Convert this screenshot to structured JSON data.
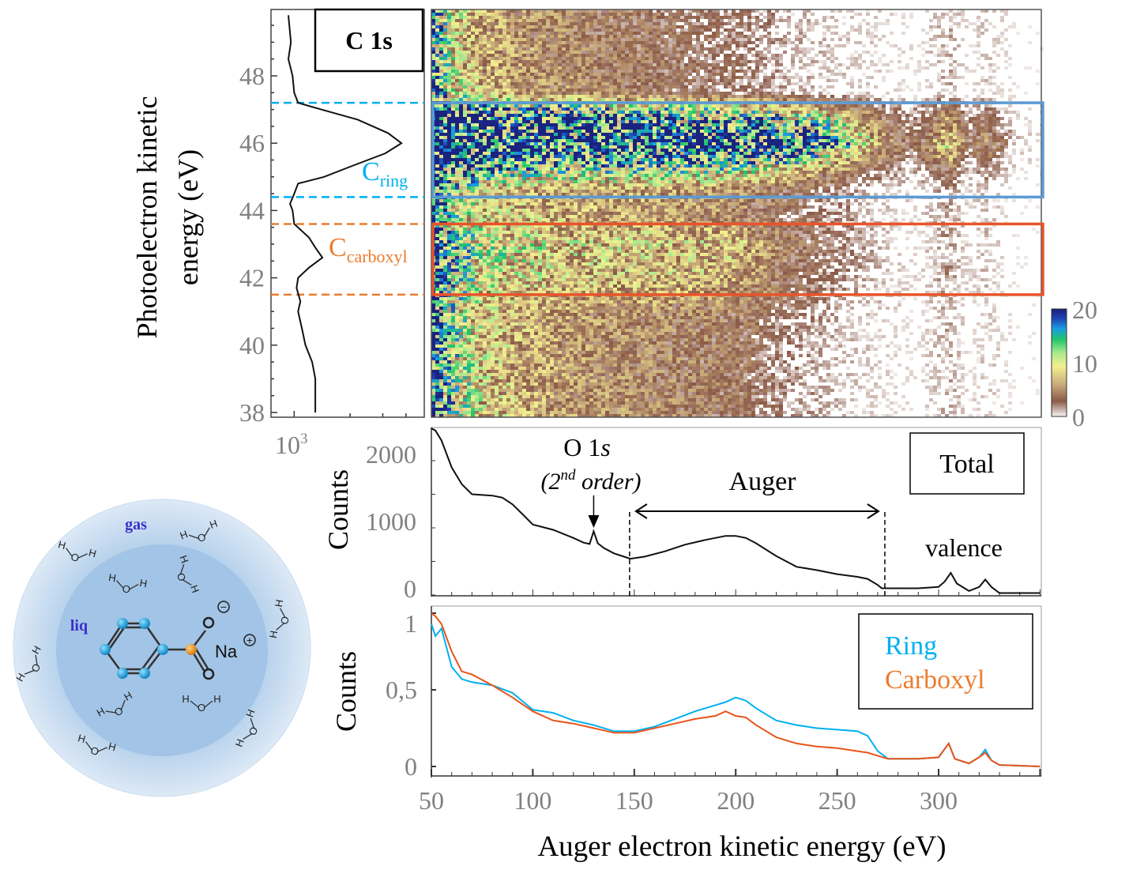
{
  "colors": {
    "ring": "#00b0f0",
    "carboxyl": "#e8641e",
    "carboxyl_label": "#ea7d2e",
    "ring_box": "#5b9bd5",
    "carboxyl_box": "#e8542a",
    "tick_gray": "#808080",
    "illustration_label": "#3a2fc8"
  },
  "chart_data": [
    {
      "type": "line",
      "panel": "side-profile",
      "ylabel": "Photoelectron kinetic energy (eV)",
      "ylim": [
        37.86,
        49.97
      ],
      "yticks": [
        "48",
        "46",
        "44",
        "42",
        "40",
        "38"
      ],
      "x_scale": "log",
      "xlim": [
        750,
        5000
      ],
      "xtick_label": {
        "base": "10",
        "exp": "3"
      },
      "title_box": "C 1s",
      "x": [
        930,
        960,
        930,
        980,
        1000,
        1050,
        1400,
        2200,
        3200,
        3780,
        3100,
        2000,
        1450,
        1050,
        1000,
        950,
        980,
        1000,
        1200,
        1300,
        1420,
        1200,
        1050,
        1030,
        1080,
        1050,
        1100,
        1150,
        1250,
        1300,
        1300,
        1300
      ],
      "y": [
        49.8,
        49,
        48.5,
        48,
        47.5,
        47.2,
        47,
        46.7,
        46.3,
        46,
        45.7,
        45.3,
        45,
        44.8,
        44.5,
        44.2,
        44,
        43.6,
        43.2,
        42.9,
        42.6,
        42.3,
        42,
        41.7,
        41.3,
        41,
        40.5,
        40,
        39.5,
        39,
        38.5,
        38
      ],
      "regions": [
        {
          "label_main": "C",
          "label_sub": "ring",
          "range": [
            44.4,
            47.2
          ],
          "color": "#00b0f0"
        },
        {
          "label_main": "C",
          "label_sub": "carboxyl",
          "range": [
            41.5,
            43.6
          ],
          "color": "#ea7d2e"
        }
      ]
    },
    {
      "type": "heatmap",
      "panel": "2d-map",
      "xlim": [
        50,
        350
      ],
      "ylim": [
        37.86,
        49.97
      ],
      "colorbar": {
        "min": 0,
        "max": 20,
        "ticks": [
          "20",
          "10",
          "0"
        ],
        "colormap": [
          "#ffffff",
          "#8b5a48",
          "#c7a97a",
          "#f3f08e",
          "#a9e98f",
          "#22c46a",
          "#1a9be0",
          "#1f3fae",
          "#1a237e"
        ]
      },
      "x_centers": [
        52,
        60,
        75,
        100,
        125,
        150,
        175,
        200,
        225,
        250,
        275,
        290,
        305,
        315,
        323,
        340
      ],
      "y_centers": [
        49.5,
        48.5,
        47.5,
        46.8,
        46,
        45.2,
        44.6,
        43.8,
        43,
        42,
        41,
        40,
        39,
        38
      ],
      "z": [
        [
          14,
          9,
          6,
          5,
          4,
          3.5,
          3,
          2.5,
          1.5,
          1,
          0.7,
          0.5,
          1.5,
          0.5,
          1,
          0.3
        ],
        [
          14,
          9,
          6,
          5,
          4,
          3.5,
          3,
          2.5,
          1.5,
          1,
          0.7,
          0.5,
          1.5,
          0.5,
          1,
          0.3
        ],
        [
          15,
          10,
          7,
          5,
          4.5,
          3.5,
          3,
          2.5,
          1.5,
          1,
          0.7,
          0.5,
          1.5,
          0.5,
          1,
          0.3
        ],
        [
          20,
          20,
          20,
          18,
          16,
          15,
          14,
          13,
          12,
          8,
          3,
          2,
          5,
          2,
          3,
          0.5
        ],
        [
          20,
          20,
          20,
          20,
          20,
          20,
          20,
          20,
          20,
          14,
          5,
          3,
          9,
          3,
          5,
          1
        ],
        [
          20,
          17,
          14,
          12,
          12,
          12,
          11,
          10,
          8,
          5,
          2,
          1.5,
          4,
          1.5,
          2,
          0.5
        ],
        [
          16,
          11,
          8,
          6,
          6,
          6,
          5.5,
          5,
          3.5,
          2,
          1,
          0.7,
          2,
          0.7,
          1.2,
          0.3
        ],
        [
          16,
          11,
          8,
          7,
          6,
          5.5,
          5,
          4.5,
          3,
          2,
          1,
          0.6,
          1.8,
          0.6,
          1.2,
          0.3
        ],
        [
          19,
          13,
          10,
          9,
          8,
          8,
          8,
          7,
          4,
          2.5,
          1,
          0.6,
          1.8,
          0.6,
          1.2,
          0.3
        ],
        [
          18,
          12,
          9,
          8,
          7,
          7,
          7,
          6,
          3.5,
          2,
          1,
          0.6,
          1.8,
          0.6,
          1.2,
          0.3
        ],
        [
          17,
          11,
          8,
          6,
          5,
          5,
          4.5,
          4,
          2.5,
          1.5,
          0.8,
          0.5,
          1.5,
          0.5,
          1,
          0.3
        ],
        [
          18,
          12,
          8,
          6,
          5,
          4.5,
          4,
          3.5,
          2,
          1.3,
          0.7,
          0.5,
          1.5,
          0.5,
          1,
          0.3
        ],
        [
          18,
          12,
          8,
          6,
          5,
          4.5,
          4,
          3.5,
          2,
          1.2,
          0.7,
          0.5,
          1.5,
          0.5,
          1,
          0.3
        ],
        [
          18,
          12,
          8,
          6,
          5,
          4.5,
          4,
          3.5,
          2,
          1.2,
          0.7,
          0.5,
          1.5,
          0.5,
          1,
          0.3
        ]
      ],
      "boxes": [
        {
          "name": "ring",
          "range": [
            44.4,
            47.2
          ]
        },
        {
          "name": "carboxyl",
          "range": [
            41.5,
            43.6
          ]
        }
      ]
    },
    {
      "type": "line",
      "panel": "total",
      "ylabel": "Counts",
      "xlim": [
        50,
        350
      ],
      "ylim": [
        0,
        2480
      ],
      "yticks": [
        "2000",
        "1000",
        "0"
      ],
      "legend": "Total",
      "x": [
        50,
        52,
        55,
        60,
        65,
        70,
        80,
        85,
        90,
        95,
        100,
        110,
        120,
        125,
        128,
        130,
        132,
        135,
        140,
        145,
        148,
        155,
        165,
        175,
        185,
        195,
        200,
        205,
        210,
        220,
        230,
        240,
        250,
        260,
        265,
        270,
        272,
        280,
        290,
        300,
        303,
        306,
        309,
        315,
        320,
        323,
        326,
        330,
        350
      ],
      "y": [
        2480,
        2450,
        2300,
        1900,
        1650,
        1500,
        1480,
        1450,
        1350,
        1200,
        1050,
        970,
        850,
        780,
        760,
        950,
        770,
        700,
        620,
        570,
        540,
        570,
        650,
        750,
        820,
        880,
        880,
        850,
        770,
        580,
        420,
        370,
        310,
        270,
        240,
        150,
        100,
        100,
        100,
        120,
        200,
        330,
        170,
        60,
        120,
        230,
        120,
        30,
        30
      ],
      "annotations": {
        "o1s": {
          "main": "O 1",
          "italic": "s",
          "order_open": "(2",
          "order_sup": "nd",
          "order_close": " order)",
          "x": 130
        },
        "auger": {
          "label": "Auger",
          "range": [
            147.7,
            273.5
          ]
        },
        "valence": "valence"
      }
    },
    {
      "type": "line",
      "panel": "ring-carboxyl",
      "ylabel": "Counts",
      "xlabel": "Auger electron kinetic energy (eV)",
      "xlim": [
        50,
        350
      ],
      "ylim": [
        0,
        1.07
      ],
      "yticks": [
        "1",
        "0,5",
        "0"
      ],
      "xticks": [
        "50",
        "100",
        "150",
        "200",
        "250",
        "300"
      ],
      "x": [
        50,
        52,
        55,
        60,
        65,
        70,
        80,
        90,
        100,
        110,
        120,
        130,
        140,
        150,
        160,
        170,
        180,
        190,
        195,
        200,
        205,
        210,
        220,
        230,
        240,
        250,
        260,
        265,
        270,
        275,
        290,
        300,
        305,
        308,
        315,
        320,
        323,
        326,
        330,
        350
      ],
      "series": [
        {
          "name": "Ring",
          "color": "#00b0f0",
          "values": [
            0.93,
            0.85,
            0.9,
            0.65,
            0.57,
            0.55,
            0.53,
            0.48,
            0.37,
            0.35,
            0.3,
            0.27,
            0.23,
            0.23,
            0.26,
            0.31,
            0.36,
            0.4,
            0.42,
            0.45,
            0.43,
            0.38,
            0.3,
            0.27,
            0.25,
            0.24,
            0.23,
            0.2,
            0.1,
            0.05,
            0.05,
            0.06,
            0.15,
            0.05,
            0.02,
            0.06,
            0.11,
            0.04,
            0.01,
            0.0
          ]
        },
        {
          "name": "Carboxyl",
          "color": "#e8541a",
          "values": [
            1.0,
            0.98,
            0.93,
            0.75,
            0.62,
            0.6,
            0.53,
            0.45,
            0.36,
            0.3,
            0.28,
            0.25,
            0.22,
            0.22,
            0.25,
            0.28,
            0.31,
            0.33,
            0.36,
            0.33,
            0.32,
            0.27,
            0.19,
            0.15,
            0.13,
            0.12,
            0.1,
            0.09,
            0.07,
            0.05,
            0.05,
            0.06,
            0.15,
            0.05,
            0.02,
            0.06,
            0.09,
            0.04,
            0.01,
            0.0
          ]
        }
      ]
    }
  ],
  "illustration": {
    "gas": "gas",
    "liq": "liq",
    "na": "Na",
    "plus": "+",
    "minus": "−",
    "h": "H",
    "o": "O"
  }
}
